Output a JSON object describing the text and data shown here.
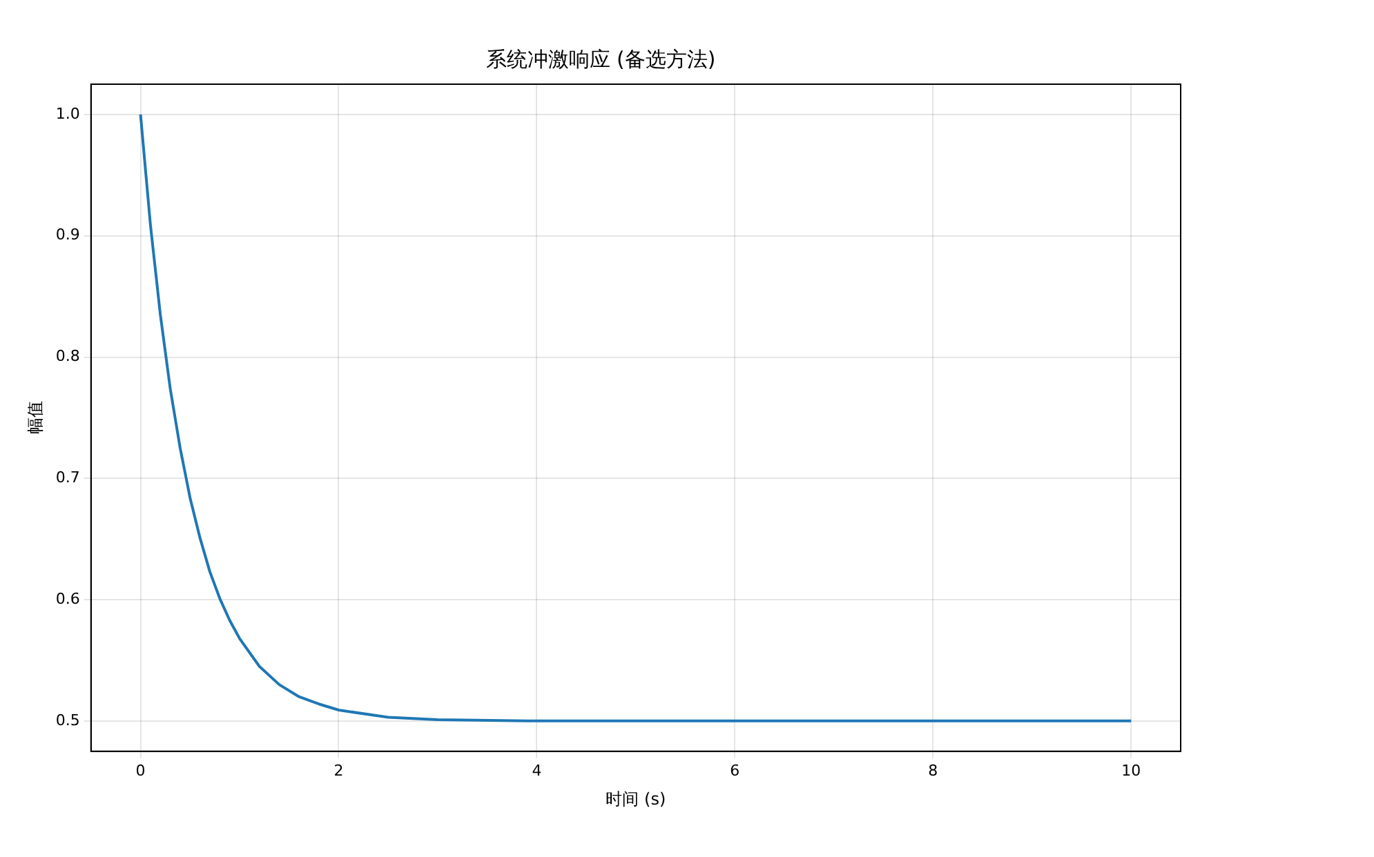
{
  "chart_data": {
    "type": "line",
    "title": "系统冲激响应 (备选方法)",
    "xlabel": "时间 (s)",
    "ylabel": "幅值",
    "x": [
      0,
      0.1,
      0.2,
      0.3,
      0.4,
      0.5,
      0.6,
      0.7,
      0.8,
      0.9,
      1.0,
      1.2,
      1.4,
      1.6,
      1.8,
      2.0,
      2.5,
      3,
      4,
      6,
      8,
      10
    ],
    "series": [
      {
        "color": "#1f77b4",
        "values": [
          1.0,
          0.909,
          0.835,
          0.774,
          0.725,
          0.684,
          0.651,
          0.623,
          0.601,
          0.583,
          0.568,
          0.545,
          0.53,
          0.52,
          0.514,
          0.509,
          0.503,
          0.501,
          0.5,
          0.5,
          0.5,
          0.5
        ]
      }
    ],
    "xlim": [
      -0.5,
      10.5
    ],
    "xticks": [
      0,
      2,
      4,
      6,
      8,
      10
    ],
    "ylim": [
      0.475,
      1.025
    ],
    "yticks": [
      {
        "value": 0.5,
        "label": "0.5"
      },
      {
        "value": 0.6,
        "label": "0.6"
      },
      {
        "value": 0.7,
        "label": "0.7"
      },
      {
        "value": 0.8,
        "label": "0.8"
      },
      {
        "value": 0.9,
        "label": "0.9"
      },
      {
        "value": 1.0,
        "label": "1.0"
      }
    ],
    "grid": true,
    "legend": false,
    "marker": "none",
    "line_style": "solid"
  }
}
